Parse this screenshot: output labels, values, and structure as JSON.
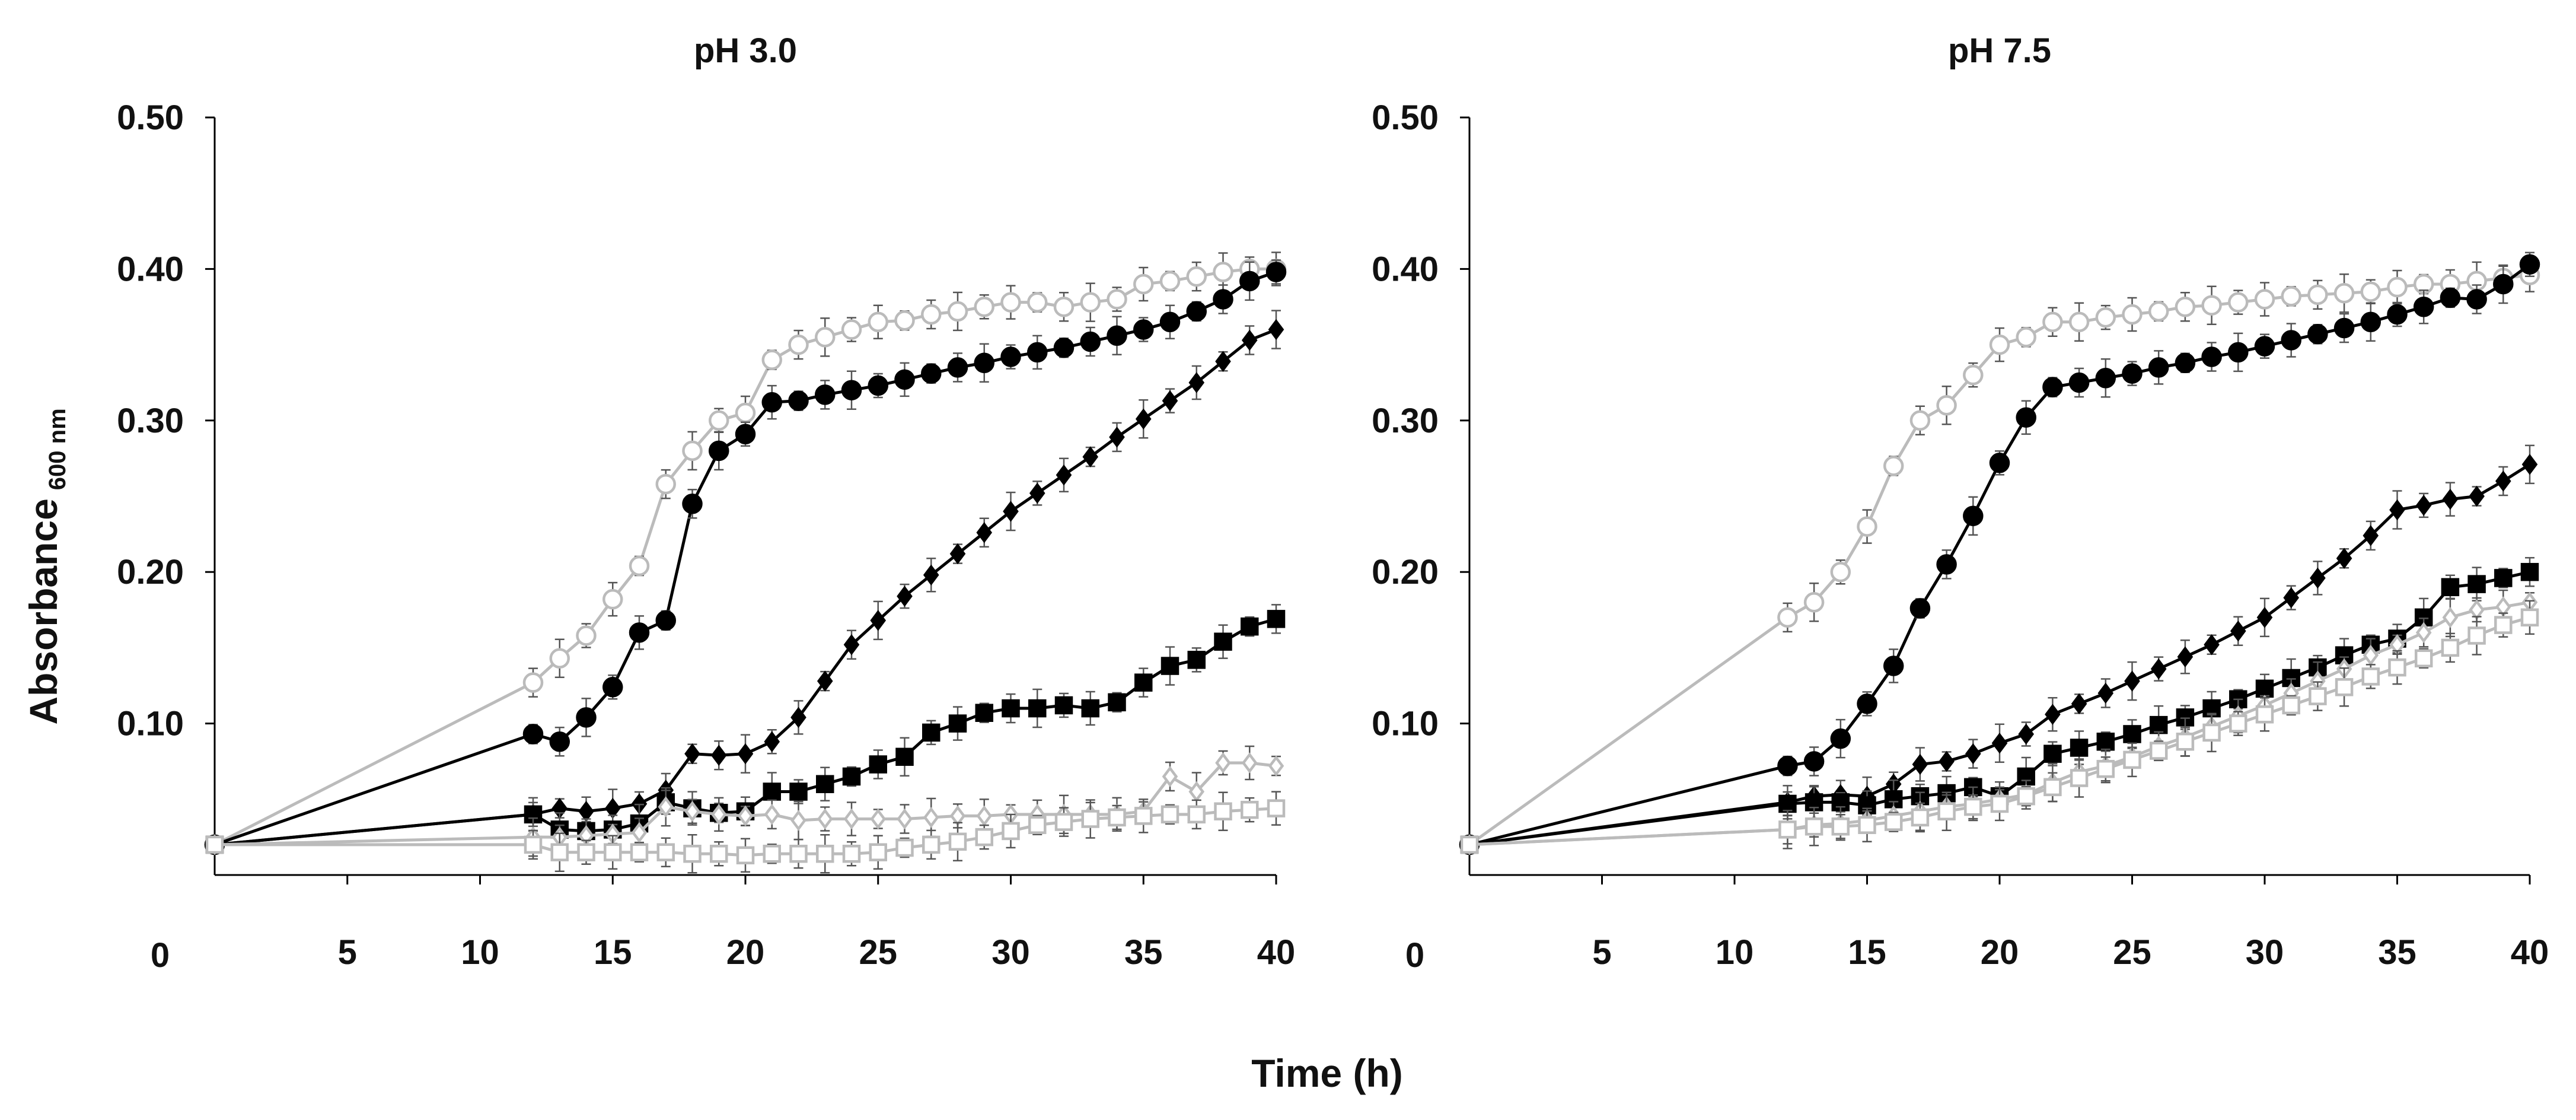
{
  "figure": {
    "xlabel": "Time (h)",
    "ylabel": "Absorbance",
    "ylabel_subscript": "600 nm"
  },
  "chart_data": [
    {
      "type": "line",
      "title": "pH 3.0",
      "xlim": [
        0,
        40
      ],
      "ylim": [
        0,
        0.5
      ],
      "xticks": [
        "5",
        "10",
        "15",
        "20",
        "25",
        "30",
        "35",
        "40"
      ],
      "yticks": [
        "0.10",
        "0.20",
        "0.30",
        "0.40",
        "0.50"
      ],
      "origin_label": "0",
      "grid": false,
      "legend": "none",
      "series": [
        {
          "color": "#bbbbbb",
          "marker": "open-circle",
          "x": [
            0,
            12,
            13,
            14,
            15,
            16,
            17,
            18,
            19,
            20,
            21,
            22,
            23,
            24,
            25,
            26,
            27,
            28,
            29,
            30,
            31,
            32,
            33,
            34,
            35,
            36,
            37,
            38,
            39,
            40
          ],
          "y": [
            0.02,
            0.127,
            0.143,
            0.158,
            0.182,
            0.204,
            0.258,
            0.28,
            0.3,
            0.305,
            0.34,
            0.35,
            0.355,
            0.36,
            0.365,
            0.366,
            0.37,
            0.372,
            0.375,
            0.378,
            0.378,
            0.375,
            0.378,
            0.38,
            0.39,
            0.392,
            0.395,
            0.398,
            0.4,
            0.4
          ]
        },
        {
          "color": "#000000",
          "marker": "filled-circle",
          "x": [
            0,
            12,
            13,
            14,
            15,
            16,
            17,
            18,
            19,
            20,
            21,
            22,
            23,
            24,
            25,
            26,
            27,
            28,
            29,
            30,
            31,
            32,
            33,
            34,
            35,
            36,
            37,
            38,
            39,
            40
          ],
          "y": [
            0.02,
            0.093,
            0.088,
            0.104,
            0.124,
            0.16,
            0.168,
            0.245,
            0.28,
            0.291,
            0.312,
            0.313,
            0.317,
            0.32,
            0.323,
            0.327,
            0.331,
            0.335,
            0.338,
            0.342,
            0.345,
            0.348,
            0.352,
            0.356,
            0.36,
            0.365,
            0.372,
            0.38,
            0.392,
            0.398
          ]
        },
        {
          "color": "#000000",
          "marker": "filled-diamond",
          "x": [
            0,
            12,
            13,
            14,
            15,
            16,
            17,
            18,
            19,
            20,
            21,
            22,
            23,
            24,
            25,
            26,
            27,
            28,
            29,
            30,
            31,
            32,
            33,
            34,
            35,
            36,
            37,
            38,
            39,
            40
          ],
          "y": [
            0.02,
            0.04,
            0.044,
            0.042,
            0.044,
            0.047,
            0.056,
            0.08,
            0.079,
            0.08,
            0.088,
            0.104,
            0.128,
            0.152,
            0.168,
            0.184,
            0.198,
            0.212,
            0.226,
            0.24,
            0.252,
            0.264,
            0.276,
            0.289,
            0.301,
            0.313,
            0.325,
            0.339,
            0.353,
            0.36
          ]
        },
        {
          "color": "#000000",
          "marker": "filled-square",
          "x": [
            0,
            12,
            13,
            14,
            15,
            16,
            17,
            18,
            19,
            20,
            21,
            22,
            23,
            24,
            25,
            26,
            27,
            28,
            29,
            30,
            31,
            32,
            33,
            34,
            35,
            36,
            37,
            38,
            39,
            40
          ],
          "y": [
            0.02,
            0.04,
            0.03,
            0.029,
            0.03,
            0.034,
            0.048,
            0.044,
            0.041,
            0.042,
            0.055,
            0.055,
            0.06,
            0.065,
            0.073,
            0.078,
            0.094,
            0.1,
            0.107,
            0.11,
            0.11,
            0.112,
            0.11,
            0.114,
            0.127,
            0.138,
            0.142,
            0.154,
            0.164,
            0.169
          ]
        },
        {
          "color": "#bbbbbb",
          "marker": "open-diamond",
          "x": [
            0,
            12,
            13,
            14,
            15,
            16,
            17,
            18,
            19,
            20,
            21,
            22,
            23,
            24,
            25,
            26,
            27,
            28,
            29,
            30,
            31,
            32,
            33,
            34,
            35,
            36,
            37,
            38,
            39,
            40
          ],
          "y": [
            0.02,
            0.025,
            0.025,
            0.026,
            0.027,
            0.028,
            0.045,
            0.042,
            0.04,
            0.039,
            0.04,
            0.036,
            0.037,
            0.037,
            0.037,
            0.037,
            0.038,
            0.039,
            0.039,
            0.04,
            0.04,
            0.04,
            0.04,
            0.04,
            0.042,
            0.065,
            0.055,
            0.074,
            0.074,
            0.072
          ]
        },
        {
          "color": "#bbbbbb",
          "marker": "open-square",
          "x": [
            0,
            12,
            13,
            14,
            15,
            16,
            17,
            18,
            19,
            20,
            21,
            22,
            23,
            24,
            25,
            26,
            27,
            28,
            29,
            30,
            31,
            32,
            33,
            34,
            35,
            36,
            37,
            38,
            39,
            40
          ],
          "y": [
            0.02,
            0.02,
            0.015,
            0.015,
            0.015,
            0.015,
            0.015,
            0.014,
            0.014,
            0.013,
            0.014,
            0.014,
            0.014,
            0.014,
            0.015,
            0.018,
            0.02,
            0.022,
            0.025,
            0.029,
            0.033,
            0.035,
            0.037,
            0.038,
            0.039,
            0.04,
            0.04,
            0.042,
            0.043,
            0.044
          ]
        }
      ]
    },
    {
      "type": "line",
      "title": "pH 7.5",
      "xlim": [
        0,
        40
      ],
      "ylim": [
        0,
        0.5
      ],
      "xticks": [
        "5",
        "10",
        "15",
        "20",
        "25",
        "30",
        "35",
        "40"
      ],
      "yticks": [
        "0.10",
        "0.20",
        "0.30",
        "0.40",
        "0.50"
      ],
      "origin_label": "0",
      "grid": false,
      "legend": "none",
      "series": [
        {
          "color": "#bbbbbb",
          "marker": "open-circle",
          "x": [
            0,
            12,
            13,
            14,
            15,
            16,
            17,
            18,
            19,
            20,
            21,
            22,
            23,
            24,
            25,
            26,
            27,
            28,
            29,
            30,
            31,
            32,
            33,
            34,
            35,
            36,
            37,
            38,
            39,
            40
          ],
          "y": [
            0.02,
            0.17,
            0.18,
            0.2,
            0.23,
            0.27,
            0.3,
            0.31,
            0.33,
            0.35,
            0.355,
            0.365,
            0.365,
            0.368,
            0.37,
            0.372,
            0.375,
            0.376,
            0.378,
            0.38,
            0.382,
            0.383,
            0.384,
            0.385,
            0.388,
            0.39,
            0.39,
            0.392,
            0.394,
            0.396
          ]
        },
        {
          "color": "#000000",
          "marker": "filled-circle",
          "x": [
            0,
            12,
            13,
            14,
            15,
            16,
            17,
            18,
            19,
            20,
            21,
            22,
            23,
            24,
            25,
            26,
            27,
            28,
            29,
            30,
            31,
            32,
            33,
            34,
            35,
            36,
            37,
            38,
            39,
            40
          ],
          "y": [
            0.02,
            0.072,
            0.075,
            0.09,
            0.113,
            0.138,
            0.176,
            0.205,
            0.237,
            0.272,
            0.302,
            0.322,
            0.325,
            0.328,
            0.331,
            0.335,
            0.338,
            0.342,
            0.345,
            0.349,
            0.353,
            0.357,
            0.361,
            0.365,
            0.37,
            0.375,
            0.381,
            0.38,
            0.39,
            0.403
          ]
        },
        {
          "color": "#000000",
          "marker": "filled-diamond",
          "x": [
            0,
            12,
            13,
            14,
            15,
            16,
            17,
            18,
            19,
            20,
            21,
            22,
            23,
            24,
            25,
            26,
            27,
            28,
            29,
            30,
            31,
            32,
            33,
            34,
            35,
            36,
            37,
            38,
            39,
            40
          ],
          "y": [
            0.02,
            0.048,
            0.052,
            0.053,
            0.052,
            0.06,
            0.073,
            0.075,
            0.08,
            0.087,
            0.093,
            0.106,
            0.113,
            0.12,
            0.128,
            0.136,
            0.144,
            0.152,
            0.161,
            0.17,
            0.183,
            0.196,
            0.209,
            0.224,
            0.241,
            0.244,
            0.248,
            0.25,
            0.26,
            0.271
          ]
        },
        {
          "color": "#000000",
          "marker": "filled-square",
          "x": [
            0,
            12,
            13,
            14,
            15,
            16,
            17,
            18,
            19,
            20,
            21,
            22,
            23,
            24,
            25,
            26,
            27,
            28,
            29,
            30,
            31,
            32,
            33,
            34,
            35,
            36,
            37,
            38,
            39,
            40
          ],
          "y": [
            0.02,
            0.047,
            0.048,
            0.048,
            0.046,
            0.05,
            0.052,
            0.054,
            0.058,
            0.052,
            0.065,
            0.08,
            0.084,
            0.088,
            0.093,
            0.099,
            0.104,
            0.11,
            0.116,
            0.123,
            0.13,
            0.137,
            0.145,
            0.152,
            0.156,
            0.17,
            0.19,
            0.192,
            0.196,
            0.2
          ]
        },
        {
          "color": "#bbbbbb",
          "marker": "open-diamond",
          "x": [
            0,
            12,
            13,
            14,
            15,
            16,
            17,
            18,
            19,
            20,
            21,
            22,
            23,
            24,
            25,
            26,
            27,
            28,
            29,
            30,
            31,
            32,
            33,
            34,
            35,
            36,
            37,
            38,
            39,
            40
          ],
          "y": [
            0.02,
            0.03,
            0.033,
            0.034,
            0.036,
            0.039,
            0.042,
            0.045,
            0.047,
            0.05,
            0.053,
            0.061,
            0.068,
            0.072,
            0.078,
            0.085,
            0.091,
            0.098,
            0.105,
            0.112,
            0.12,
            0.128,
            0.136,
            0.145,
            0.152,
            0.16,
            0.17,
            0.175,
            0.177,
            0.18
          ]
        },
        {
          "color": "#bbbbbb",
          "marker": "open-square",
          "x": [
            0,
            12,
            13,
            14,
            15,
            16,
            17,
            18,
            19,
            20,
            21,
            22,
            23,
            24,
            25,
            26,
            27,
            28,
            29,
            30,
            31,
            32,
            33,
            34,
            35,
            36,
            37,
            38,
            39,
            40
          ],
          "y": [
            0.02,
            0.03,
            0.032,
            0.032,
            0.033,
            0.035,
            0.038,
            0.042,
            0.045,
            0.047,
            0.052,
            0.058,
            0.064,
            0.07,
            0.076,
            0.082,
            0.088,
            0.094,
            0.1,
            0.106,
            0.112,
            0.118,
            0.124,
            0.131,
            0.137,
            0.143,
            0.15,
            0.158,
            0.165,
            0.17
          ]
        }
      ]
    }
  ]
}
